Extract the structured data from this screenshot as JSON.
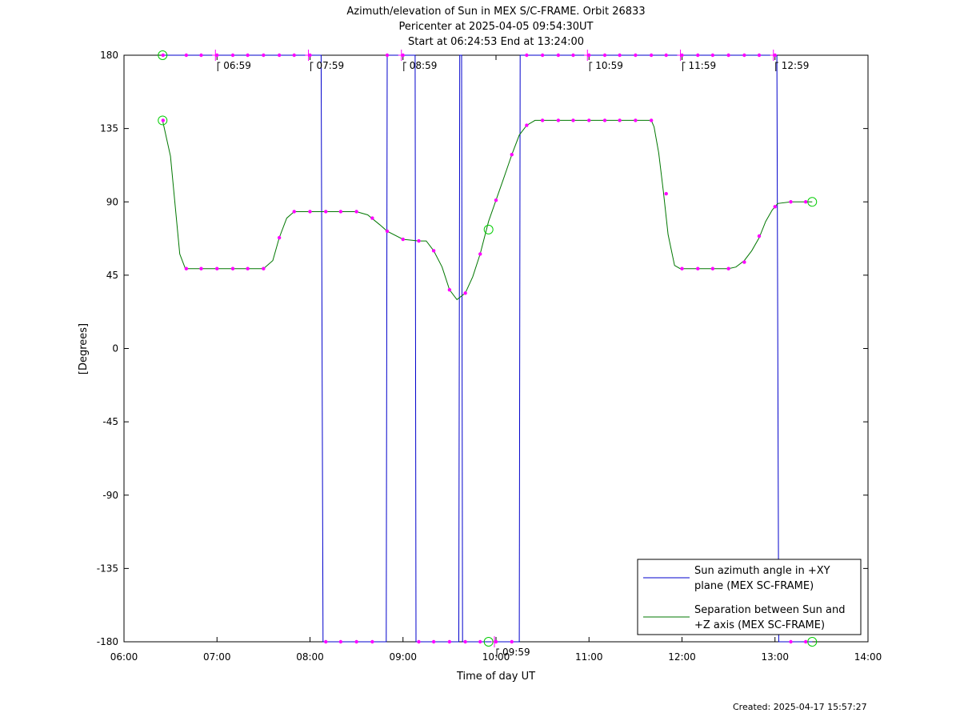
{
  "chart_data": {
    "type": "line",
    "title_lines": [
      "Azimuth/elevation of Sun in MEX S/C-FRAME.  Orbit 26833",
      "Pericenter at 2025-04-05 09:54:30UT",
      "Start at 06:24:53 End at 13:24:00"
    ],
    "xlabel": "Time of day UT",
    "ylabel": "[Degrees]",
    "xlim": [
      6.0,
      14.0
    ],
    "ylim": [
      -180,
      180
    ],
    "x_ticks": [
      {
        "value": 6,
        "label": "06:00"
      },
      {
        "value": 7,
        "label": "07:00"
      },
      {
        "value": 8,
        "label": "08:00"
      },
      {
        "value": 9,
        "label": "09:00"
      },
      {
        "value": 10,
        "label": "10:00"
      },
      {
        "value": 11,
        "label": "11:00"
      },
      {
        "value": 12,
        "label": "12:00"
      },
      {
        "value": 13,
        "label": "13:00"
      },
      {
        "value": 14,
        "label": "14:00"
      }
    ],
    "y_ticks": [
      {
        "value": 180,
        "label": "180"
      },
      {
        "value": 135,
        "label": "135"
      },
      {
        "value": 90,
        "label": "90"
      },
      {
        "value": 45,
        "label": "45"
      },
      {
        "value": 0,
        "label": "0"
      },
      {
        "value": -45,
        "label": "-45"
      },
      {
        "value": -90,
        "label": "-90"
      },
      {
        "value": -135,
        "label": "-135"
      },
      {
        "value": -180,
        "label": "-180"
      }
    ],
    "legend_position": "bottom-right",
    "grid": false,
    "series": [
      {
        "name": "Sun azimuth angle in +XY plane (MEX SC-FRAME)",
        "legend_lines": [
          "Sun azimuth angle in +XY",
          "plane (MEX SC-FRAME)"
        ],
        "color": "#0000cc",
        "points": [
          [
            6.415,
            180
          ],
          [
            8.12,
            180
          ],
          [
            8.14,
            -180
          ],
          [
            8.82,
            -180
          ],
          [
            8.83,
            180
          ],
          [
            9.13,
            180
          ],
          [
            9.14,
            -180
          ],
          [
            9.6,
            -180
          ],
          [
            9.61,
            180
          ],
          [
            9.63,
            180
          ],
          [
            9.64,
            -180
          ],
          [
            10.25,
            -180
          ],
          [
            10.26,
            180
          ],
          [
            13.02,
            180
          ],
          [
            13.04,
            -180
          ],
          [
            13.4,
            -180
          ]
        ]
      },
      {
        "name": "Separation between Sun and +Z axis (MEX SC-FRAME)",
        "legend_lines": [
          "Separation between Sun and",
          "+Z axis (MEX SC-FRAME)"
        ],
        "color": "#007700",
        "points": [
          [
            6.415,
            140
          ],
          [
            6.5,
            118
          ],
          [
            6.6,
            58
          ],
          [
            6.66,
            49
          ],
          [
            6.83,
            49
          ],
          [
            7.0,
            49
          ],
          [
            7.3,
            49
          ],
          [
            7.5,
            49
          ],
          [
            7.6,
            54
          ],
          [
            7.67,
            68
          ],
          [
            7.75,
            80
          ],
          [
            7.83,
            84
          ],
          [
            8.0,
            84
          ],
          [
            8.33,
            84
          ],
          [
            8.5,
            84
          ],
          [
            8.62,
            82
          ],
          [
            8.75,
            76
          ],
          [
            8.83,
            72
          ],
          [
            9.0,
            67
          ],
          [
            9.17,
            66
          ],
          [
            9.25,
            66
          ],
          [
            9.33,
            60
          ],
          [
            9.42,
            50
          ],
          [
            9.5,
            36
          ],
          [
            9.58,
            30
          ],
          [
            9.67,
            34
          ],
          [
            9.75,
            44
          ],
          [
            9.83,
            58
          ],
          [
            9.92,
            78
          ],
          [
            10.0,
            91
          ],
          [
            10.08,
            104
          ],
          [
            10.17,
            119
          ],
          [
            10.25,
            131
          ],
          [
            10.33,
            137
          ],
          [
            10.42,
            140
          ],
          [
            10.5,
            140
          ],
          [
            11.0,
            140
          ],
          [
            11.5,
            140
          ],
          [
            11.67,
            140
          ],
          [
            11.7,
            136
          ],
          [
            11.75,
            120
          ],
          [
            11.8,
            96
          ],
          [
            11.85,
            70
          ],
          [
            11.92,
            51
          ],
          [
            11.98,
            49
          ],
          [
            12.17,
            49
          ],
          [
            12.5,
            49
          ],
          [
            12.58,
            50
          ],
          [
            12.67,
            54
          ],
          [
            12.75,
            60
          ],
          [
            12.83,
            68
          ],
          [
            12.9,
            78
          ],
          [
            12.97,
            85
          ],
          [
            13.03,
            89
          ],
          [
            13.17,
            90
          ],
          [
            13.4,
            90
          ]
        ]
      }
    ],
    "markers": [
      [
        6.42,
        180
      ],
      [
        6.67,
        180
      ],
      [
        6.83,
        180
      ],
      [
        7.0,
        180
      ],
      [
        7.17,
        180
      ],
      [
        7.33,
        180
      ],
      [
        7.5,
        180
      ],
      [
        7.67,
        180
      ],
      [
        7.83,
        180
      ],
      [
        8.0,
        180
      ],
      [
        8.83,
        180
      ],
      [
        9.0,
        180
      ],
      [
        10.33,
        180
      ],
      [
        10.5,
        180
      ],
      [
        10.67,
        180
      ],
      [
        10.83,
        180
      ],
      [
        11.0,
        180
      ],
      [
        11.17,
        180
      ],
      [
        11.33,
        180
      ],
      [
        11.5,
        180
      ],
      [
        11.67,
        180
      ],
      [
        11.83,
        180
      ],
      [
        12.0,
        180
      ],
      [
        12.17,
        180
      ],
      [
        12.33,
        180
      ],
      [
        12.5,
        180
      ],
      [
        12.67,
        180
      ],
      [
        12.83,
        180
      ],
      [
        13.0,
        180
      ],
      [
        8.17,
        -180
      ],
      [
        8.33,
        -180
      ],
      [
        8.5,
        -180
      ],
      [
        8.67,
        -180
      ],
      [
        9.17,
        -180
      ],
      [
        9.33,
        -180
      ],
      [
        9.5,
        -180
      ],
      [
        9.67,
        -180
      ],
      [
        9.83,
        -180
      ],
      [
        10.0,
        -180
      ],
      [
        10.17,
        -180
      ],
      [
        13.17,
        -180
      ],
      [
        13.33,
        -180
      ],
      [
        6.42,
        140
      ],
      [
        6.67,
        49
      ],
      [
        6.83,
        49
      ],
      [
        7.0,
        49
      ],
      [
        7.17,
        49
      ],
      [
        7.33,
        49
      ],
      [
        7.5,
        49
      ],
      [
        7.67,
        68
      ],
      [
        7.83,
        84
      ],
      [
        8.0,
        84
      ],
      [
        8.17,
        84
      ],
      [
        8.33,
        84
      ],
      [
        8.5,
        84
      ],
      [
        8.67,
        80
      ],
      [
        8.83,
        72
      ],
      [
        9.0,
        67
      ],
      [
        9.17,
        66
      ],
      [
        9.33,
        60
      ],
      [
        9.5,
        36
      ],
      [
        9.67,
        34
      ],
      [
        9.83,
        58
      ],
      [
        10.0,
        91
      ],
      [
        10.17,
        119
      ],
      [
        10.33,
        137
      ],
      [
        10.5,
        140
      ],
      [
        10.67,
        140
      ],
      [
        10.83,
        140
      ],
      [
        11.0,
        140
      ],
      [
        11.17,
        140
      ],
      [
        11.33,
        140
      ],
      [
        11.5,
        140
      ],
      [
        11.67,
        140
      ],
      [
        11.83,
        95
      ],
      [
        12.0,
        49
      ],
      [
        12.17,
        49
      ],
      [
        12.33,
        49
      ],
      [
        12.5,
        49
      ],
      [
        12.67,
        53
      ],
      [
        12.83,
        69
      ],
      [
        13.0,
        87
      ],
      [
        13.17,
        90
      ],
      [
        13.33,
        90
      ]
    ],
    "hour_marks": [
      {
        "x": 6.983,
        "y": 180,
        "label": "06:59"
      },
      {
        "x": 7.983,
        "y": 180,
        "label": "07:59"
      },
      {
        "x": 8.983,
        "y": 180,
        "label": "08:59"
      },
      {
        "x": 9.983,
        "y": -180,
        "label": "09:59"
      },
      {
        "x": 10.983,
        "y": 180,
        "label": "10:59"
      },
      {
        "x": 11.983,
        "y": 180,
        "label": "11:59"
      },
      {
        "x": 12.983,
        "y": 180,
        "label": "12:59"
      }
    ],
    "endpoint_circles": [
      [
        6.415,
        180
      ],
      [
        6.415,
        140
      ],
      [
        9.92,
        73
      ],
      [
        9.92,
        -180
      ],
      [
        13.4,
        90
      ],
      [
        13.4,
        -180
      ]
    ]
  },
  "footer": {
    "created": "Created: 2025-04-17 15:57:27"
  }
}
